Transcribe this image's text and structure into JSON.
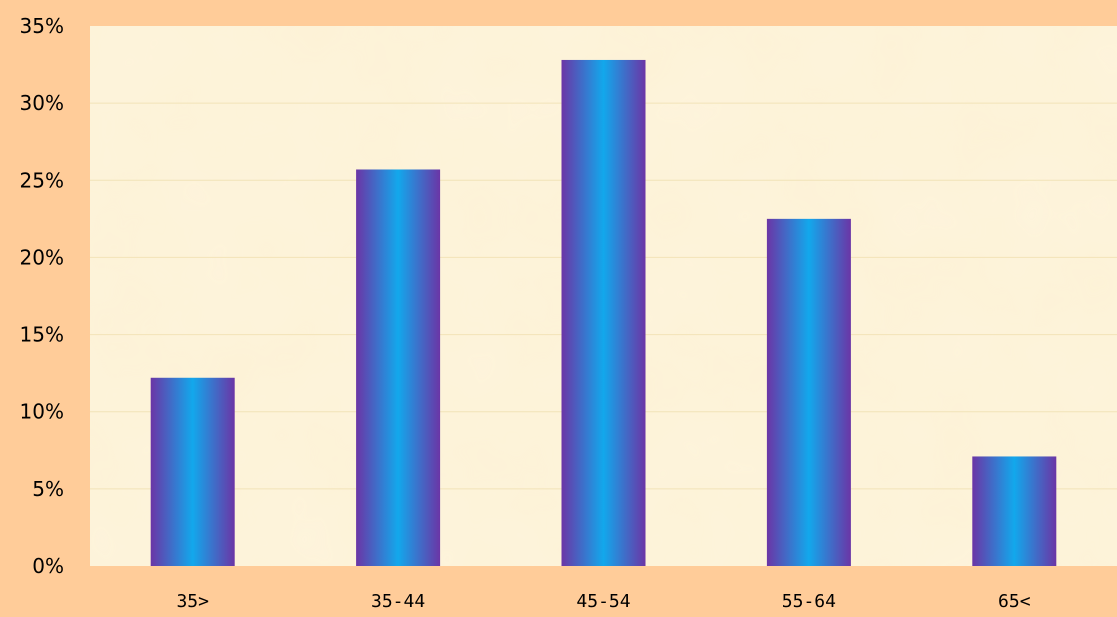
{
  "colors": {
    "background": "#FFCC99",
    "plot_area": "#FDF2D6",
    "gridline": "#F2E3B8",
    "bar_edge": "#6B35A6",
    "bar_center": "#12A8EC"
  },
  "chart_data": {
    "type": "bar",
    "categories": [
      "35>",
      "35-44",
      "45-54",
      "55-64",
      "65<"
    ],
    "values": [
      12.2,
      25.7,
      32.8,
      22.5,
      7.1
    ],
    "ylim": [
      0,
      35
    ],
    "yticks": [
      0,
      5,
      10,
      15,
      20,
      25,
      30,
      35
    ],
    "ytick_labels": [
      "0%",
      "5%",
      "10%",
      "15%",
      "20%",
      "25%",
      "30%",
      "35%"
    ],
    "grid": true,
    "legend": "none"
  }
}
